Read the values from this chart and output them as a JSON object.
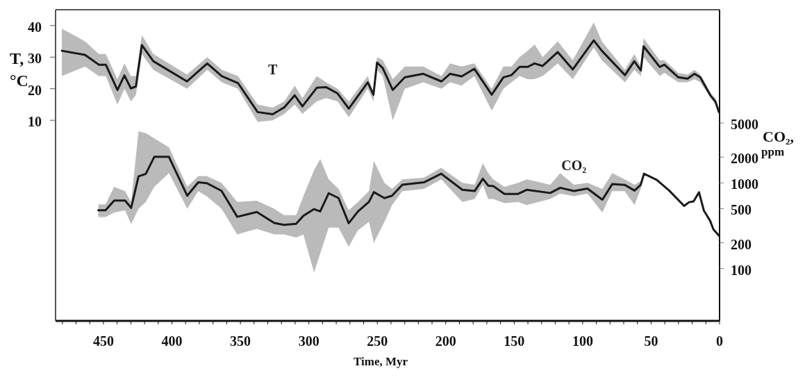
{
  "chart_data": {
    "type": "line",
    "xlabel": "Time, Myr",
    "ylabel": "T, °C",
    "y2label": "CO₂,$_{ppm}$",
    "xlim": [
      485,
      0
    ],
    "xticks": [
      {
        "value": 480,
        "label": null
      },
      {
        "value": 470,
        "label": null
      },
      {
        "value": 460,
        "label": null
      },
      450,
      {
        "value": 440,
        "label": null
      },
      {
        "value": 430,
        "label": null
      },
      {
        "value": 420,
        "label": null
      },
      {
        "value": 410,
        "label": null
      },
      400,
      {
        "value": 390,
        "label": null
      },
      {
        "value": 380,
        "label": null
      },
      {
        "value": 370,
        "label": null
      },
      {
        "value": 360,
        "label": null
      },
      350,
      {
        "value": 340,
        "label": null
      },
      {
        "value": 330,
        "label": null
      },
      {
        "value": 320,
        "label": null
      },
      {
        "value": 310,
        "label": null
      },
      300,
      {
        "value": 290,
        "label": null
      },
      {
        "value": 280,
        "label": null
      },
      {
        "value": 270,
        "label": null
      },
      {
        "value": 260,
        "label": null
      },
      250,
      {
        "value": 240,
        "label": null
      },
      {
        "value": 230,
        "label": null
      },
      {
        "value": 220,
        "label": null
      },
      {
        "value": 210,
        "label": null
      },
      200,
      {
        "value": 190,
        "label": null
      },
      {
        "value": 180,
        "label": null
      },
      {
        "value": 170,
        "label": null
      },
      {
        "value": 160,
        "label": null
      },
      150,
      {
        "value": 140,
        "label": null
      },
      {
        "value": 130,
        "label": null
      },
      {
        "value": 120,
        "label": null
      },
      {
        "value": 110,
        "label": null
      },
      100,
      {
        "value": 90,
        "label": null
      },
      {
        "value": 80,
        "label": null
      },
      {
        "value": 70,
        "label": null
      },
      {
        "value": 60,
        "label": null
      },
      50,
      {
        "value": 40,
        "label": null
      },
      {
        "value": 30,
        "label": null
      },
      {
        "value": 20,
        "label": null
      },
      {
        "value": 10,
        "label": null
      },
      0
    ],
    "ylim": [
      -53.5,
      45
    ],
    "yticks": [
      10,
      20,
      30,
      40
    ],
    "y2lim": [
      24.5,
      105000
    ],
    "y2ticks": [
      100,
      200,
      500,
      1000,
      2000,
      5000
    ],
    "log": "y2",
    "marker": "none",
    "line_style": "solid",
    "series": [
      {
        "name": "T",
        "color": "#1a1a1a",
        "x": [
          480.4,
          463.5,
          453.4,
          448.3,
          439.8,
          434.7,
          430,
          426.3,
          422,
          413.6,
          389,
          374.2,
          363.6,
          351.8,
          337.4,
          326.4,
          317.9,
          310.3,
          304.7,
          294.2,
          287.5,
          279,
          270.8,
          257,
          252.8,
          250.2,
          246,
          238.7,
          229.9,
          216.4,
          203.1,
          196.9,
          188.4,
          179.1,
          166.4,
          157.9,
          152,
          146.1,
          140.2,
          135.1,
          129.2,
          118.2,
          107.2,
          91.9,
          86,
          69.1,
          62.3,
          57.5,
          55.5,
          43.7,
          40.3,
          30.1,
          23.4,
          18.3,
          14.1,
          6.4,
          3,
          0.5
        ],
        "values": [
          32.0,
          30.7,
          27.6,
          27.6,
          19.6,
          24.2,
          20.1,
          20.7,
          33.8,
          28.7,
          22.3,
          28.0,
          24.0,
          21.8,
          12.6,
          11.9,
          14.1,
          17.9,
          14.4,
          20.3,
          20.5,
          18.5,
          13.7,
          22.0,
          18.1,
          28.3,
          26.5,
          19.6,
          23.6,
          24.7,
          22.3,
          24.7,
          23.9,
          26.3,
          18.1,
          23.6,
          24.3,
          26.9,
          26.9,
          28.0,
          27.2,
          31.6,
          26.1,
          35.3,
          32.0,
          24.3,
          28.7,
          25.8,
          33.4,
          26.9,
          27.6,
          23.6,
          23.2,
          24.7,
          23.6,
          17.7,
          15.9,
          12.6
        ],
        "lower": [
          24,
          27,
          24,
          24,
          15,
          20,
          16,
          18,
          31,
          26,
          20,
          26,
          22,
          20,
          9.5,
          10,
          12,
          15,
          12,
          16,
          17,
          16,
          11,
          20,
          16,
          26,
          24,
          10,
          20,
          22,
          20,
          22,
          21,
          24,
          13,
          20,
          22,
          24,
          23,
          23,
          24,
          28,
          23,
          33,
          29,
          22,
          26,
          24,
          30,
          24,
          25,
          22,
          22,
          23,
          22,
          17,
          15,
          12
        ],
        "upper": [
          39,
          35,
          31,
          31,
          23,
          28,
          24,
          24,
          37,
          31,
          24.5,
          30,
          26,
          24,
          15,
          14,
          16,
          21,
          17,
          24,
          22,
          20,
          16,
          24,
          19,
          30,
          29,
          23,
          27,
          27,
          24,
          28,
          27,
          28,
          20,
          27,
          27,
          30,
          32,
          34,
          30,
          35,
          29,
          41,
          35,
          26,
          31,
          27,
          36,
          29,
          29,
          25,
          24.5,
          26,
          24.5,
          18.5,
          17,
          13
        ]
      },
      {
        "name": "CO₂",
        "color": "#1a1a1a",
        "axis": "y2",
        "x": [
          453.8,
          448.5,
          442.2,
          434.2,
          429.8,
          424.4,
          419.1,
          412.9,
          402.2,
          388.8,
          380.8,
          374.6,
          363.8,
          352.3,
          338,
          325.3,
          318.2,
          309.3,
          304,
          296.2,
          291.7,
          285.5,
          278.3,
          270.9,
          264.1,
          256.1,
          252.5,
          244.8,
          239.2,
          231.7,
          216,
          203.3,
          187.9,
          178.9,
          172.9,
          169,
          165.3,
          157.1,
          147.2,
          140.9,
          123.7,
          116.4,
          106.4,
          96.5,
          85.6,
          78.4,
          69.3,
          62.1,
          57.6,
          55.2,
          45.8,
          36.8,
          25.9,
          22.3,
          19,
          15,
          11.4,
          6.9,
          4.5,
          0.6
        ],
        "values": [
          479,
          479,
          622,
          622,
          510,
          1194,
          1274,
          2014,
          2014,
          708,
          1015,
          993,
          807,
          402,
          457,
          340,
          324,
          333,
          412,
          494,
          464,
          757,
          664,
          338,
          464,
          601,
          780,
          664,
          708,
          951,
          1013,
          1279,
          830,
          803,
          1118,
          930,
          918,
          743,
          743,
          830,
          762,
          877,
          803,
          859,
          637,
          967,
          948,
          813,
          948,
          1279,
          1083,
          813,
          538,
          595,
          608,
          776,
          472,
          361,
          287,
          243
        ],
        "lower": [
          400,
          400,
          450,
          480,
          330,
          500,
          600,
          900,
          1300,
          500,
          800,
          700,
          500,
          250,
          290,
          250,
          250,
          230,
          250,
          90,
          150,
          300,
          300,
          180,
          280,
          350,
          200,
          350,
          550,
          800,
          850,
          1100,
          600,
          650,
          950,
          650,
          650,
          580,
          600,
          550,
          650,
          750,
          700,
          750,
          450,
          800,
          800,
          550,
          850,
          1200,
          null,
          null,
          null,
          null,
          null,
          null,
          null,
          null,
          null,
          null
        ],
        "upper": [
          560,
          560,
          900,
          800,
          600,
          4000,
          3800,
          3300,
          2600,
          900,
          1200,
          1200,
          1000,
          600,
          620,
          500,
          420,
          420,
          700,
          1400,
          1900,
          1100,
          850,
          480,
          600,
          800,
          1800,
          1000,
          850,
          1100,
          1150,
          1500,
          1000,
          950,
          1700,
          1300,
          1100,
          900,
          1000,
          1100,
          950,
          1300,
          950,
          1000,
          850,
          1300,
          1100,
          950,
          1050,
          1350,
          null,
          null,
          null,
          null,
          null,
          null,
          null,
          null,
          null,
          null
        ]
      }
    ]
  }
}
